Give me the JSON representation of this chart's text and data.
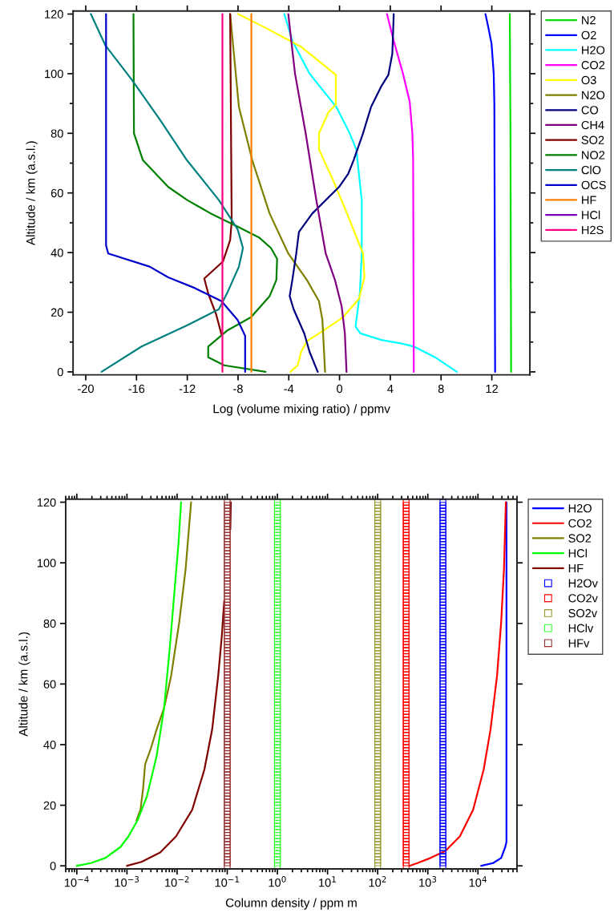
{
  "chart_data": [
    {
      "type": "line",
      "xlabel": "Log (volume mixing ratio) / ppmv",
      "ylabel": "Altitude / km (a.s.l.)",
      "xlim": [
        -21,
        15
      ],
      "ylim": [
        -1,
        121
      ],
      "xticks": [
        -20,
        -16,
        -12,
        -8,
        -4,
        0,
        4,
        8,
        12
      ],
      "yticks": [
        0,
        {
          "value": 10,
          "label": null
        },
        20,
        {
          "value": 30,
          "label": null
        },
        40,
        {
          "value": 50,
          "label": null
        },
        60,
        {
          "value": 70,
          "label": null
        },
        80,
        {
          "value": 90,
          "label": null
        },
        100,
        {
          "value": 110,
          "label": null
        },
        120
      ],
      "legend": "right",
      "series": [
        {
          "name": "N2",
          "color": "#00e000",
          "x": [
            13.42,
            13.44,
            13.47,
            13.52
          ],
          "values": [
            120,
            100,
            80,
            0
          ]
        },
        {
          "name": "O2",
          "color": "#0000ff",
          "x": [
            11.5,
            11.75,
            11.98,
            12.15,
            12.2,
            12.26
          ],
          "values": [
            120,
            115,
            110,
            100,
            90,
            0
          ]
        },
        {
          "name": "H2O",
          "color": "#00ffff",
          "x": [
            -4.35,
            -3.72,
            -2.36,
            -0.25,
            0.8,
            1.32,
            1.75,
            1.75,
            1.6,
            1.26,
            1.64,
            3.3,
            5.0,
            5.85,
            7.53,
            9.25
          ],
          "values": [
            120,
            111,
            100,
            88.8,
            80,
            74.6,
            57.6,
            39.7,
            26.3,
            15.2,
            12.9,
            10.7,
            9.4,
            8.5,
            4.9,
            0
          ]
        },
        {
          "name": "CO2",
          "color": "#ff00ff",
          "x": [
            3.74,
            4.27,
            5.0,
            5.53,
            5.74,
            5.8,
            5.85
          ],
          "values": [
            120,
            111,
            100,
            90.6,
            80,
            71,
            0
          ]
        },
        {
          "name": "O3",
          "color": "#ffff00",
          "x": [
            -7.99,
            -5.93,
            -2.99,
            -0.29,
            -0.29,
            -0.88,
            -1.62,
            -1.62,
            -0.46,
            0.59,
            1.85,
            1.96,
            1.54,
            0.27,
            -1.3,
            -2.57,
            -3.03,
            -3.3,
            -3.87
          ],
          "values": [
            120,
            115.6,
            108.9,
            99.6,
            89.7,
            87,
            80,
            74.6,
            63.8,
            53.1,
            39.7,
            31.7,
            24.6,
            18.3,
            13.8,
            10.3,
            6.7,
            2.2,
            0
          ]
        },
        {
          "name": "N2O",
          "color": "#808000",
          "x": [
            -8.62,
            -7.93,
            -6.88,
            -5.51,
            -4.04,
            -2.57,
            -1.62,
            -1.35,
            -1.14
          ],
          "values": [
            120,
            88.8,
            71,
            53.1,
            39.7,
            30.8,
            23.7,
            17.4,
            0
          ]
        },
        {
          "name": "CO",
          "color": "#000080",
          "x": [
            4.27,
            4.16,
            3.85,
            3.32,
            2.48,
            1.85,
            1.11,
            0.69,
            -0.04,
            -2.15,
            -3.2,
            -3.41,
            -3.72,
            -3.93,
            -3.62,
            -2.78,
            -2.36,
            -1.72
          ],
          "values": [
            120,
            106.7,
            99.6,
            96,
            88.8,
            80,
            71,
            66.5,
            62,
            53.1,
            46.9,
            39.7,
            30.8,
            25.4,
            21,
            12.9,
            6.7,
            0
          ]
        },
        {
          "name": "CH4",
          "color": "#800080",
          "x": [
            -4.04,
            -3.51,
            -2.67,
            -1.83,
            -1.09,
            -0.36,
            0.17,
            0.42,
            0.55
          ],
          "values": [
            120,
            100,
            80,
            57.6,
            39.7,
            30.8,
            21.9,
            12.9,
            0
          ]
        },
        {
          "name": "SO2",
          "color": "#800000",
          "x": [
            -8.62,
            -8.5,
            -8.62,
            -9.19,
            -10.66,
            -10.35,
            -9.72,
            -9.3
          ],
          "values": [
            120,
            50.4,
            44.2,
            37,
            31.3,
            26.3,
            19.2,
            12.5
          ]
        },
        {
          "name": "NO2",
          "color": "#008000",
          "x": [
            -16.24,
            -16.2,
            -15.5,
            -13.5,
            -12.0,
            -10.14,
            -8.03,
            -6.35,
            -5.4,
            -4.92,
            -4.98,
            -5.51,
            -6.98,
            -8.87,
            -10.35,
            -10.35,
            -9.09,
            -5.83
          ],
          "values": [
            120,
            80,
            71,
            62,
            57.6,
            53.1,
            48.7,
            45.1,
            41.5,
            37.9,
            30.8,
            25.4,
            18.3,
            13.8,
            8.5,
            4.9,
            2.2,
            0
          ]
        },
        {
          "name": "ClO",
          "color": "#008080",
          "x": [
            -19.6,
            -18.44,
            -16.34,
            -14.13,
            -12.03,
            -9.51,
            -8.03,
            -7.61,
            -7.93,
            -8.87,
            -9.51,
            -12.03,
            -15.6,
            -18.76
          ],
          "values": [
            120,
            109.4,
            97.8,
            84.4,
            71,
            57.6,
            47.8,
            41.5,
            35.3,
            26.3,
            21,
            15.6,
            8.5,
            0
          ]
        },
        {
          "name": "OCS",
          "color": "#0000cc",
          "x": [
            -18.4,
            -18.4,
            -18.23,
            -14.97,
            -13.5,
            -11.4,
            -9.3,
            -8.03,
            -7.44,
            -7.44
          ],
          "values": [
            120,
            42.4,
            39.7,
            35.3,
            31.7,
            28.1,
            23.7,
            17.4,
            12.1,
            0
          ]
        },
        {
          "name": "HF",
          "color": "#ff8000",
          "x": [
            -6.95,
            -6.95
          ],
          "values": [
            120,
            0
          ]
        },
        {
          "name": "HCl",
          "color": "#8000c0",
          "x": [
            null,
            null
          ],
          "values": [
            null,
            null
          ]
        },
        {
          "name": "H2S",
          "color": "#ff0080",
          "x": [
            -9.23,
            -9.23
          ],
          "values": [
            120,
            0
          ]
        }
      ]
    },
    {
      "type": "line",
      "xlabel": "Column density / ppm m",
      "ylabel": "Altitude / km (a.s.l.)",
      "log": "x",
      "xlim": [
        6e-05,
        60000
      ],
      "ylim": [
        -1,
        121
      ],
      "xticks": [
        {
          "value": 0.0001,
          "label": "10$^{−4}$"
        },
        {
          "value": 0.001,
          "label": "10$^{−3}$"
        },
        {
          "value": 0.01,
          "label": "10$^{−2}$"
        },
        {
          "value": 0.1,
          "label": "10$^{−1}$"
        },
        {
          "value": 1,
          "label": "10$^{0}$"
        },
        {
          "value": 10,
          "label": "10$^{1}$"
        },
        {
          "value": 100,
          "label": "10$^{2}$"
        },
        {
          "value": 1000,
          "label": "10$^{3}$"
        },
        {
          "value": 10000,
          "label": "10$^{4}$"
        }
      ],
      "yticks": [
        0,
        20,
        40,
        60,
        80,
        100,
        120
      ],
      "legend": "right",
      "series": [
        {
          "name": "H2O",
          "color": "#0000ff",
          "x": [
            11600,
            20000,
            29000,
            35000,
            37000,
            37000
          ],
          "values": [
            0,
            0.9,
            2.6,
            6.2,
            7.9,
            120
          ]
        },
        {
          "name": "CO2",
          "color": "#ff0000",
          "x": [
            430,
            620,
            1130,
            2230,
            4350,
            8000,
            13000,
            17800,
            24000,
            29000,
            33000,
            36000
          ],
          "values": [
            0,
            0.9,
            2.6,
            4.9,
            9.7,
            18.5,
            31.8,
            45,
            62.7,
            80.3,
            98,
            120
          ]
        },
        {
          "name": "SO2",
          "color": "#808000",
          "x": [
            0.00155,
            0.00186,
            0.0021,
            0.0023,
            0.003,
            0.0039,
            0.0055,
            0.0076,
            0.011,
            0.0148,
            0.019
          ],
          "values": [
            15,
            18.5,
            25.6,
            33.5,
            38.8,
            45,
            52.1,
            62.7,
            80.3,
            98,
            120
          ]
        },
        {
          "name": "HCl",
          "color": "#00ff00",
          "x": [
            0.0001,
            0.00019,
            0.00037,
            0.00074,
            0.00107,
            0.00162,
            0.0025,
            0.0039,
            0.0055,
            0.0071,
            0.0087,
            0.0107,
            0.012
          ],
          "values": [
            0,
            0.9,
            2.6,
            6.2,
            9.7,
            15,
            22.9,
            36.2,
            52.1,
            71.5,
            89.1,
            106.8,
            120
          ]
        },
        {
          "name": "HF",
          "color": "#800000",
          "x": [
            0.001,
            0.00195,
            0.0046,
            0.0095,
            0.02,
            0.035,
            0.05,
            0.066,
            0.078,
            0.087,
            null,
            0.115,
            0.118
          ],
          "values": [
            0,
            1.3,
            4.4,
            9.7,
            18.5,
            31.8,
            45,
            62.7,
            75.9,
            87.4,
            null,
            111,
            120
          ]
        },
        {
          "name": "H2Ov",
          "type": "scatter",
          "marker": "square",
          "color": "#0000ff",
          "x": [
            2000,
            2000,
            2000,
            2000,
            2000,
            2000,
            2000,
            2000,
            2000,
            2000,
            2000,
            2000,
            2000,
            2000,
            2000,
            2000,
            2000,
            2000,
            2000,
            2000,
            2000,
            2000,
            2000,
            2000,
            2000,
            2000,
            2000,
            2000,
            2000,
            2000,
            2000,
            2000,
            2000,
            2000,
            2000,
            2000,
            2000,
            2000,
            2000,
            2000,
            2000,
            2000,
            2000,
            2000,
            2000,
            2000,
            2000,
            2000,
            2000,
            2000,
            2000,
            2000,
            2000,
            2000,
            2000,
            2000,
            2000,
            2000,
            2000,
            2000,
            2000,
            2000,
            2000,
            2000,
            2000,
            2000,
            2000,
            2000,
            2000,
            2000,
            2000,
            2000,
            2000,
            2000,
            2000,
            2000,
            2000,
            2000,
            2000,
            2000,
            2000,
            2000,
            2000,
            2000,
            2000,
            2000,
            2000,
            2000,
            2000,
            2000,
            2000,
            2000,
            2000,
            2000,
            2000,
            2000,
            2000,
            2000,
            2000,
            2000,
            2000,
            2000,
            2000,
            2000,
            2000,
            2000,
            2000,
            2000,
            2000,
            2000,
            2000,
            2000,
            2000,
            2000,
            2000,
            2000,
            2000,
            2000,
            2000,
            2000,
            2000
          ],
          "values": [
            0,
            1,
            2,
            3,
            4,
            5,
            6,
            7,
            8,
            9,
            10,
            11,
            12,
            13,
            14,
            15,
            16,
            17,
            18,
            19,
            20,
            21,
            22,
            23,
            24,
            25,
            26,
            27,
            28,
            29,
            30,
            31,
            32,
            33,
            34,
            35,
            36,
            37,
            38,
            39,
            40,
            41,
            42,
            43,
            44,
            45,
            46,
            47,
            48,
            49,
            50,
            51,
            52,
            53,
            54,
            55,
            56,
            57,
            58,
            59,
            60,
            61,
            62,
            63,
            64,
            65,
            66,
            67,
            68,
            69,
            70,
            71,
            72,
            73,
            74,
            75,
            76,
            77,
            78,
            79,
            80,
            81,
            82,
            83,
            84,
            85,
            86,
            87,
            88,
            89,
            90,
            91,
            92,
            93,
            94,
            95,
            96,
            97,
            98,
            99,
            100,
            101,
            102,
            103,
            104,
            105,
            106,
            107,
            108,
            109,
            110,
            111,
            112,
            113,
            114,
            115,
            116,
            117,
            118,
            119,
            120
          ]
        },
        {
          "name": "CO2v",
          "type": "scatter",
          "marker": "square",
          "color": "#ff0000",
          "x": [
            370,
            370,
            370,
            370,
            370,
            370,
            370,
            370,
            370,
            370,
            370,
            370,
            370,
            370,
            370,
            370,
            370,
            370,
            370,
            370,
            370,
            370,
            370,
            370,
            370,
            370,
            370,
            370,
            370,
            370,
            370,
            370,
            370,
            370,
            370,
            370,
            370,
            370,
            370,
            370,
            370,
            370,
            370,
            370,
            370,
            370,
            370,
            370,
            370,
            370,
            370,
            370,
            370,
            370,
            370,
            370,
            370,
            370,
            370,
            370,
            370,
            370,
            370,
            370,
            370,
            370,
            370,
            370,
            370,
            370,
            370,
            370,
            370,
            370,
            370,
            370,
            370,
            370,
            370,
            370,
            370,
            370,
            370,
            370,
            370,
            370,
            370,
            370,
            370,
            370,
            370,
            370,
            370,
            370,
            370,
            370,
            370,
            370,
            370,
            370,
            370,
            370,
            370,
            370,
            370,
            370,
            370,
            370,
            370,
            370,
            370,
            370,
            370,
            370,
            370,
            370,
            370,
            370,
            370,
            370,
            370
          ],
          "values": [
            0,
            1,
            2,
            3,
            4,
            5,
            6,
            7,
            8,
            9,
            10,
            11,
            12,
            13,
            14,
            15,
            16,
            17,
            18,
            19,
            20,
            21,
            22,
            23,
            24,
            25,
            26,
            27,
            28,
            29,
            30,
            31,
            32,
            33,
            34,
            35,
            36,
            37,
            38,
            39,
            40,
            41,
            42,
            43,
            44,
            45,
            46,
            47,
            48,
            49,
            50,
            51,
            52,
            53,
            54,
            55,
            56,
            57,
            58,
            59,
            60,
            61,
            62,
            63,
            64,
            65,
            66,
            67,
            68,
            69,
            70,
            71,
            72,
            73,
            74,
            75,
            76,
            77,
            78,
            79,
            80,
            81,
            82,
            83,
            84,
            85,
            86,
            87,
            88,
            89,
            90,
            91,
            92,
            93,
            94,
            95,
            96,
            97,
            98,
            99,
            100,
            101,
            102,
            103,
            104,
            105,
            106,
            107,
            108,
            109,
            110,
            111,
            112,
            113,
            114,
            115,
            116,
            117,
            118,
            119,
            120
          ]
        },
        {
          "name": "SO2v",
          "type": "scatter",
          "marker": "square",
          "color": "#999933",
          "x": [
            100,
            100,
            100,
            100,
            100,
            100,
            100,
            100,
            100,
            100,
            100,
            100,
            100,
            100,
            100,
            100,
            100,
            100,
            100,
            100,
            100,
            100,
            100,
            100,
            100,
            100,
            100,
            100,
            100,
            100,
            100,
            100,
            100,
            100,
            100,
            100,
            100,
            100,
            100,
            100,
            100,
            100,
            100,
            100,
            100,
            100,
            100,
            100,
            100,
            100,
            100,
            100,
            100,
            100,
            100,
            100,
            100,
            100,
            100,
            100,
            100,
            100,
            100,
            100,
            100,
            100,
            100,
            100,
            100,
            100,
            100,
            100,
            100,
            100,
            100,
            100,
            100,
            100,
            100,
            100,
            100,
            100,
            100,
            100,
            100,
            100,
            100,
            100,
            100,
            100,
            100,
            100,
            100,
            100,
            100,
            100,
            100,
            100,
            100,
            100,
            100,
            100,
            100,
            100,
            100,
            100,
            100,
            100,
            100,
            100,
            100,
            100,
            100,
            100,
            100,
            100,
            100,
            100,
            100,
            100,
            100
          ],
          "values": [
            0,
            1,
            2,
            3,
            4,
            5,
            6,
            7,
            8,
            9,
            10,
            11,
            12,
            13,
            14,
            15,
            16,
            17,
            18,
            19,
            20,
            21,
            22,
            23,
            24,
            25,
            26,
            27,
            28,
            29,
            30,
            31,
            32,
            33,
            34,
            35,
            36,
            37,
            38,
            39,
            40,
            41,
            42,
            43,
            44,
            45,
            46,
            47,
            48,
            49,
            50,
            51,
            52,
            53,
            54,
            55,
            56,
            57,
            58,
            59,
            60,
            61,
            62,
            63,
            64,
            65,
            66,
            67,
            68,
            69,
            70,
            71,
            72,
            73,
            74,
            75,
            76,
            77,
            78,
            79,
            80,
            81,
            82,
            83,
            84,
            85,
            86,
            87,
            88,
            89,
            90,
            91,
            92,
            93,
            94,
            95,
            96,
            97,
            98,
            99,
            100,
            101,
            102,
            103,
            104,
            105,
            106,
            107,
            108,
            109,
            110,
            111,
            112,
            113,
            114,
            115,
            116,
            117,
            118,
            119,
            120
          ]
        },
        {
          "name": "HClv",
          "type": "scatter",
          "marker": "square",
          "color": "#33ff33",
          "x": [
            1,
            1,
            1,
            1,
            1,
            1,
            1,
            1,
            1,
            1,
            1,
            1,
            1,
            1,
            1,
            1,
            1,
            1,
            1,
            1,
            1,
            1,
            1,
            1,
            1,
            1,
            1,
            1,
            1,
            1,
            1,
            1,
            1,
            1,
            1,
            1,
            1,
            1,
            1,
            1,
            1,
            1,
            1,
            1,
            1,
            1,
            1,
            1,
            1,
            1,
            1,
            1,
            1,
            1,
            1,
            1,
            1,
            1,
            1,
            1,
            1,
            1,
            1,
            1,
            1,
            1,
            1,
            1,
            1,
            1,
            1,
            1,
            1,
            1,
            1,
            1,
            1,
            1,
            1,
            1,
            1,
            1,
            1,
            1,
            1,
            1,
            1,
            1,
            1,
            1,
            1,
            1,
            1,
            1,
            1,
            1,
            1,
            1,
            1,
            1,
            1,
            1,
            1,
            1,
            1,
            1,
            1,
            1,
            1,
            1,
            1,
            1,
            1,
            1,
            1,
            1,
            1,
            1,
            1,
            1,
            1
          ],
          "values": [
            0,
            1,
            2,
            3,
            4,
            5,
            6,
            7,
            8,
            9,
            10,
            11,
            12,
            13,
            14,
            15,
            16,
            17,
            18,
            19,
            20,
            21,
            22,
            23,
            24,
            25,
            26,
            27,
            28,
            29,
            30,
            31,
            32,
            33,
            34,
            35,
            36,
            37,
            38,
            39,
            40,
            41,
            42,
            43,
            44,
            45,
            46,
            47,
            48,
            49,
            50,
            51,
            52,
            53,
            54,
            55,
            56,
            57,
            58,
            59,
            60,
            61,
            62,
            63,
            64,
            65,
            66,
            67,
            68,
            69,
            70,
            71,
            72,
            73,
            74,
            75,
            76,
            77,
            78,
            79,
            80,
            81,
            82,
            83,
            84,
            85,
            86,
            87,
            88,
            89,
            90,
            91,
            92,
            93,
            94,
            95,
            96,
            97,
            98,
            99,
            100,
            101,
            102,
            103,
            104,
            105,
            106,
            107,
            108,
            109,
            110,
            111,
            112,
            113,
            114,
            115,
            116,
            117,
            118,
            119,
            120
          ]
        },
        {
          "name": "HFv",
          "type": "scatter",
          "marker": "square",
          "color": "#993333",
          "x": [
            0.1,
            0.1,
            0.1,
            0.1,
            0.1,
            0.1,
            0.1,
            0.1,
            0.1,
            0.1,
            0.1,
            0.1,
            0.1,
            0.1,
            0.1,
            0.1,
            0.1,
            0.1,
            0.1,
            0.1,
            0.1,
            0.1,
            0.1,
            0.1,
            0.1,
            0.1,
            0.1,
            0.1,
            0.1,
            0.1,
            0.1,
            0.1,
            0.1,
            0.1,
            0.1,
            0.1,
            0.1,
            0.1,
            0.1,
            0.1,
            0.1,
            0.1,
            0.1,
            0.1,
            0.1,
            0.1,
            0.1,
            0.1,
            0.1,
            0.1,
            0.1,
            0.1,
            0.1,
            0.1,
            0.1,
            0.1,
            0.1,
            0.1,
            0.1,
            0.1,
            0.1,
            0.1,
            0.1,
            0.1,
            0.1,
            0.1,
            0.1,
            0.1,
            0.1,
            0.1,
            0.1,
            0.1,
            0.1,
            0.1,
            0.1,
            0.1,
            0.1,
            0.1,
            0.1,
            0.1,
            0.1,
            0.1,
            0.1,
            0.1,
            0.1,
            0.1,
            0.1,
            0.1,
            0.1,
            0.1,
            0.1,
            0.1,
            0.1,
            0.1,
            0.1,
            0.1,
            0.1,
            0.1,
            0.1,
            0.1,
            0.1,
            0.1,
            0.1,
            0.1,
            0.1,
            0.1,
            0.1,
            0.1,
            0.1,
            0.1,
            0.1,
            0.1,
            0.1,
            0.1,
            0.1,
            0.1,
            0.1,
            0.1,
            0.1,
            0.1,
            0.1
          ],
          "values": [
            0,
            1,
            2,
            3,
            4,
            5,
            6,
            7,
            8,
            9,
            10,
            11,
            12,
            13,
            14,
            15,
            16,
            17,
            18,
            19,
            20,
            21,
            22,
            23,
            24,
            25,
            26,
            27,
            28,
            29,
            30,
            31,
            32,
            33,
            34,
            35,
            36,
            37,
            38,
            39,
            40,
            41,
            42,
            43,
            44,
            45,
            46,
            47,
            48,
            49,
            50,
            51,
            52,
            53,
            54,
            55,
            56,
            57,
            58,
            59,
            60,
            61,
            62,
            63,
            64,
            65,
            66,
            67,
            68,
            69,
            70,
            71,
            72,
            73,
            74,
            75,
            76,
            77,
            78,
            79,
            80,
            81,
            82,
            83,
            84,
            85,
            86,
            87,
            88,
            89,
            90,
            91,
            92,
            93,
            94,
            95,
            96,
            97,
            98,
            99,
            100,
            101,
            102,
            103,
            104,
            105,
            106,
            107,
            108,
            109,
            110,
            111,
            112,
            113,
            114,
            115,
            116,
            117,
            118,
            119,
            120
          ]
        }
      ]
    }
  ]
}
